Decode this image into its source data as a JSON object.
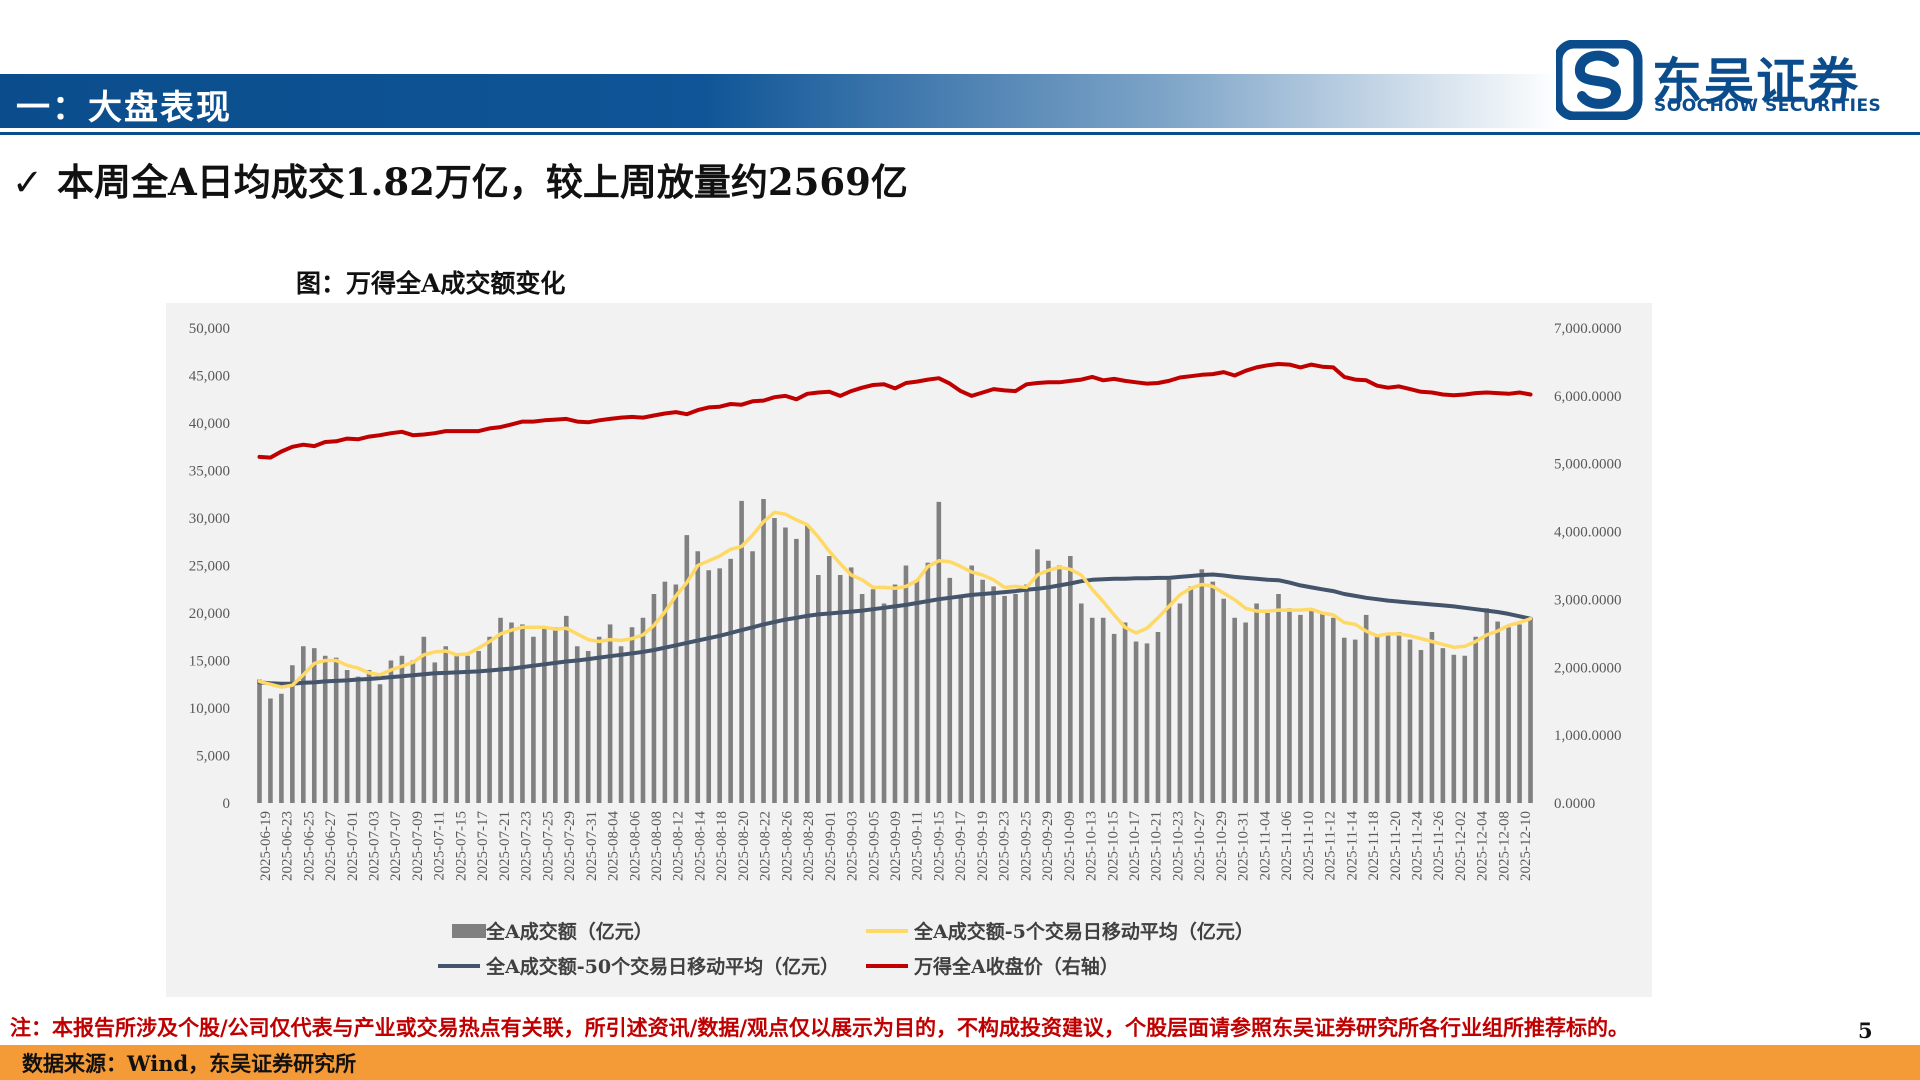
{
  "header": {
    "title": "一：大盘表现"
  },
  "logo": {
    "name_cn": "东吴证券",
    "name_en": "SOOCHOW SECURITIES"
  },
  "headline": {
    "check": "✓",
    "text": "本周全A日均成交1.82万亿，较上周放量约2569亿"
  },
  "figure": {
    "title": "图：万得全A成交额变化"
  },
  "footer": {
    "disclaimer": "注：本报告所涉及个股/公司仅代表与产业或交易热点有关联，所引述资讯/数据/观点仅以展示为目的，不构成投资建议，个股层面请参照东吴证券研究所各行业组所推荐标的。",
    "page_number": "5",
    "source": "数据来源：Wind，东吴证券研究所"
  },
  "colors": {
    "bar": "#808080",
    "ma5": "#ffd966",
    "ma50": "#44546a",
    "index": "#c00000",
    "header_blue": "#0b4d8c",
    "footer_orange": "#f49a36",
    "disclaimer_red": "#c00000"
  },
  "chart_data": {
    "type": "bar",
    "title": "",
    "y_left": {
      "ticks": [
        "50,000",
        "45,000",
        "40,000",
        "35,000",
        "30,000",
        "25,000",
        "20,000",
        "15,000",
        "10,000",
        "5,000",
        "0"
      ],
      "range": [
        0,
        50000
      ]
    },
    "y_right": {
      "ticks": [
        "7,000.0000",
        "6,000.0000",
        "5,000.0000",
        "4,000.0000",
        "3,000.0000",
        "2,000.0000",
        "1,000.0000",
        "0.0000"
      ],
      "range": [
        0,
        7000
      ]
    },
    "x_tick_labels": [
      "2025-06-19",
      "2025-06-23",
      "2025-06-25",
      "2025-06-27",
      "2025-07-01",
      "2025-07-03",
      "2025-07-07",
      "2025-07-09",
      "2025-07-11",
      "2025-07-15",
      "2025-07-17",
      "2025-07-21",
      "2025-07-23",
      "2025-07-25",
      "2025-07-29",
      "2025-07-31",
      "2025-08-04",
      "2025-08-06",
      "2025-08-08",
      "2025-08-12",
      "2025-08-14",
      "2025-08-18",
      "2025-08-20",
      "2025-08-22",
      "2025-08-26",
      "2025-08-28",
      "2025-09-01",
      "2025-09-03",
      "2025-09-05",
      "2025-09-09",
      "2025-09-11",
      "2025-09-15",
      "2025-09-17",
      "2025-09-19",
      "2025-09-23",
      "2025-09-25",
      "2025-09-29",
      "2025-10-09",
      "2025-10-13",
      "2025-10-15",
      "2025-10-17",
      "2025-10-21",
      "2025-10-23",
      "2025-10-27",
      "2025-10-29",
      "2025-10-31",
      "2025-11-04",
      "2025-11-06",
      "2025-11-10",
      "2025-11-12",
      "2025-11-14",
      "2025-11-18",
      "2025-11-20",
      "2025-11-24",
      "2025-11-26",
      "2025-12-02",
      "2025-12-04",
      "2025-12-08",
      "2025-12-10"
    ],
    "turnover": [
      13000,
      11000,
      11500,
      14500,
      16500,
      16300,
      15500,
      15300,
      14000,
      13300,
      14000,
      12500,
      15000,
      15500,
      15000,
      17500,
      14800,
      16500,
      15500,
      15500,
      16000,
      17500,
      19500,
      19000,
      18800,
      17500,
      18500,
      18500,
      19700,
      16500,
      16000,
      17500,
      18800,
      16500,
      18500,
      19500,
      22000,
      23300,
      23000,
      28200,
      26500,
      24500,
      24700,
      25700,
      31800,
      26500,
      32000,
      30000,
      29000,
      27800,
      29200,
      24000,
      26000,
      24000,
      24800,
      22000,
      22500,
      21000,
      23000,
      25000,
      23500,
      25300,
      31700,
      23700,
      21800,
      25000,
      23500,
      22800,
      21800,
      22000,
      23000,
      26700,
      25500,
      25000,
      26000,
      21000,
      19500,
      19500,
      17800,
      19000,
      17000,
      16800,
      18000,
      23500,
      21000,
      22800,
      24600,
      23300,
      21500,
      19500,
      19000,
      21000,
      20000,
      22000,
      20500,
      19800,
      20200,
      20000,
      19500,
      17400,
      17200,
      19800,
      17700,
      17900,
      18000,
      17200,
      16100,
      18000,
      16300,
      15600,
      15500,
      17500,
      20500,
      19100,
      18500,
      18800,
      19500
    ],
    "ma5": [
      12800,
      12500,
      12200,
      12400,
      13500,
      14700,
      15000,
      15000,
      14500,
      14200,
      13700,
      13500,
      14000,
      14400,
      14800,
      15600,
      15900,
      16000,
      15600,
      15700,
      16300,
      17000,
      17800,
      18200,
      18500,
      18500,
      18500,
      18300,
      18400,
      17800,
      17200,
      17000,
      17200,
      17100,
      17300,
      17700,
      18700,
      20100,
      21800,
      23200,
      25000,
      25500,
      26000,
      26700,
      27000,
      28200,
      29600,
      30600,
      30400,
      29800,
      29300,
      28000,
      26500,
      25200,
      24000,
      23500,
      22700,
      22700,
      22600,
      22800,
      23400,
      24900,
      25500,
      25400,
      24900,
      24300,
      24000,
      23500,
      22700,
      22800,
      22700,
      24000,
      24500,
      24800,
      24600,
      24000,
      22500,
      21200,
      19800,
      18500,
      17900,
      18400,
      19500,
      20700,
      21900,
      22600,
      23000,
      22800,
      22100,
      21400,
      20500,
      20200,
      20200,
      20300,
      20300,
      20300,
      20400,
      20000,
      19800,
      19000,
      18800,
      18100,
      17600,
      17800,
      17800,
      17600,
      17300,
      17000,
      16700,
      16400,
      16500,
      17000,
      17700,
      18100,
      18700,
      19000,
      19400
    ],
    "ma50": [
      12700,
      12600,
      12550,
      12550,
      12650,
      12700,
      12800,
      12850,
      12900,
      13000,
      13050,
      13150,
      13250,
      13350,
      13450,
      13550,
      13650,
      13700,
      13750,
      13800,
      13850,
      13950,
      14050,
      14150,
      14300,
      14450,
      14600,
      14750,
      14900,
      15000,
      15150,
      15300,
      15450,
      15600,
      15750,
      15900,
      16100,
      16350,
      16600,
      16850,
      17100,
      17350,
      17600,
      17900,
      18200,
      18500,
      18800,
      19050,
      19300,
      19500,
      19700,
      19850,
      19950,
      20050,
      20150,
      20250,
      20400,
      20550,
      20700,
      20850,
      21050,
      21250,
      21450,
      21600,
      21750,
      21900,
      22000,
      22100,
      22200,
      22300,
      22450,
      22550,
      22700,
      22900,
      23100,
      23350,
      23500,
      23550,
      23600,
      23600,
      23650,
      23650,
      23700,
      23700,
      23800,
      23900,
      24000,
      24050,
      23950,
      23800,
      23700,
      23600,
      23500,
      23450,
      23200,
      22900,
      22700,
      22500,
      22300,
      22000,
      21800,
      21600,
      21450,
      21300,
      21200,
      21100,
      21000,
      20900,
      20800,
      20700,
      20550,
      20400,
      20250,
      20100,
      19900,
      19650,
      19400
    ],
    "index_close": [
      5100,
      5090,
      5180,
      5250,
      5280,
      5260,
      5320,
      5330,
      5370,
      5360,
      5400,
      5420,
      5450,
      5470,
      5420,
      5430,
      5450,
      5480,
      5480,
      5480,
      5480,
      5520,
      5540,
      5580,
      5620,
      5620,
      5640,
      5650,
      5660,
      5620,
      5610,
      5640,
      5660,
      5680,
      5690,
      5680,
      5710,
      5740,
      5760,
      5730,
      5790,
      5830,
      5840,
      5880,
      5870,
      5920,
      5930,
      5980,
      6000,
      5950,
      6030,
      6050,
      6060,
      6000,
      6070,
      6120,
      6160,
      6170,
      6110,
      6190,
      6210,
      6240,
      6260,
      6180,
      6070,
      6000,
      6050,
      6100,
      6080,
      6070,
      6170,
      6190,
      6200,
      6200,
      6220,
      6240,
      6280,
      6230,
      6250,
      6220,
      6200,
      6180,
      6190,
      6220,
      6270,
      6290,
      6310,
      6320,
      6350,
      6300,
      6370,
      6420,
      6450,
      6470,
      6460,
      6420,
      6460,
      6430,
      6420,
      6280,
      6240,
      6230,
      6150,
      6120,
      6140,
      6100,
      6060,
      6050,
      6020,
      6010,
      6020,
      6040,
      6050,
      6040,
      6030,
      6050,
      6020
    ]
  },
  "legend": [
    {
      "key": "turnover",
      "label": "全A成交额（亿元）"
    },
    {
      "key": "ma5",
      "label": "全A成交额-5个交易日移动平均（亿元）"
    },
    {
      "key": "ma50",
      "label": "全A成交额-50个交易日移动平均（亿元）"
    },
    {
      "key": "index_close",
      "label": "万得全A收盘价（右轴）"
    }
  ]
}
